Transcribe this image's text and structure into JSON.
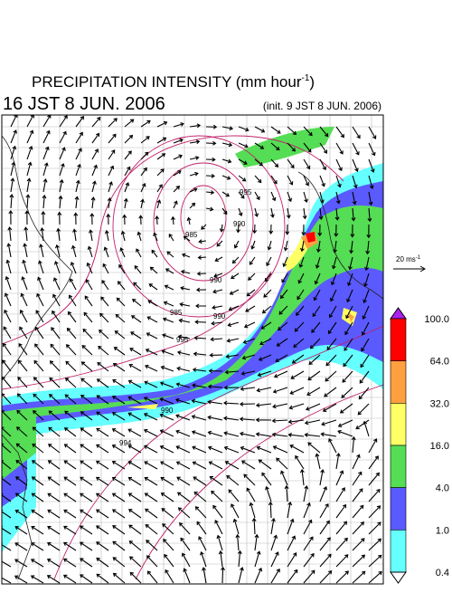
{
  "header": {
    "title_main": "PRECIPITATION INTENSITY (mm hour",
    "title_sup": "-1",
    "title_end": ")",
    "valid_time": "16 JST 8 JUN. 2006",
    "init_time": "(init. 9 JST 8 JUN. 2006)"
  },
  "wind_reference": {
    "text": "20 ms",
    "sup": "-1"
  },
  "colorbar": {
    "labels": [
      "100.0",
      "64.0",
      "32.0",
      "16.0",
      "4.0",
      "1.0",
      "0.4"
    ],
    "colors": [
      "#ff0000",
      "#ffa040",
      "#ffff66",
      "#55dd55",
      "#5a5aff",
      "#66ffff"
    ],
    "over_color": "#aa22ee",
    "under_color": "#ffffff"
  },
  "contour_labels": [
    "985",
    "990",
    "995",
    "990",
    "985",
    "990",
    "995",
    "994",
    "990"
  ]
}
